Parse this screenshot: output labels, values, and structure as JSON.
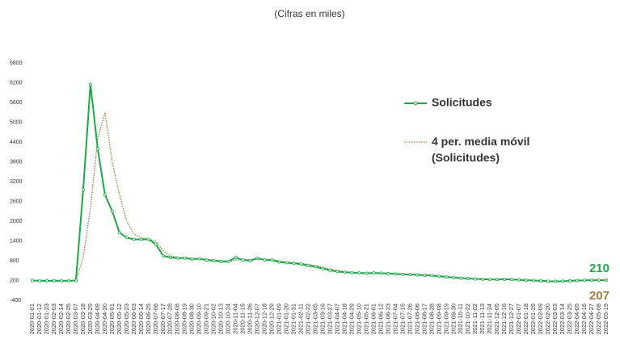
{
  "chart_data": {
    "type": "line",
    "subtitle": "(Cifras en miles)",
    "categories": [
      "2020-01-01",
      "2020-01-12",
      "2020-01-23",
      "2020-02-03",
      "2020-02-14",
      "2020-02-25",
      "2020-03-07",
      "2020-03-18",
      "2020-03-29",
      "2020-04-09",
      "2020-04-20",
      "2020-05-01",
      "2020-05-12",
      "2020-05-23",
      "2020-06-03",
      "2020-06-14",
      "2020-06-25",
      "2020-07-06",
      "2020-07-17",
      "2020-07-28",
      "2020-08-08",
      "2020-08-19",
      "2020-08-30",
      "2020-09-10",
      "2020-09-21",
      "2020-10-02",
      "2020-10-13",
      "2020-10-24",
      "2020-11-04",
      "2020-11-15",
      "2020-11-26",
      "2020-12-07",
      "2020-12-18",
      "2020-12-29",
      "2021-01-09",
      "2021-01-20",
      "2021-01-31",
      "2021-02-11",
      "2021-02-22",
      "2021-03-05",
      "2021-03-16",
      "2021-03-27",
      "2021-04-07",
      "2021-04-18",
      "2021-04-29",
      "2021-05-10",
      "2021-05-21",
      "2021-06-01",
      "2021-06-12",
      "2021-06-23",
      "2021-07-04",
      "2021-07-15",
      "2021-07-26",
      "2021-08-06",
      "2021-08-17",
      "2021-08-28",
      "2021-09-08",
      "2021-09-19",
      "2021-09-30",
      "2021-10-11",
      "2021-10-22",
      "2021-11-02",
      "2021-11-13",
      "2021-11-24",
      "2021-12-05",
      "2021-12-16",
      "2021-12-27",
      "2022-01-07",
      "2022-01-18",
      "2022-01-29",
      "2022-02-09",
      "2022-02-20",
      "2022-03-03",
      "2022-03-14",
      "2022-03-25",
      "2022-04-05",
      "2022-04-16",
      "2022-04-27",
      "2022-05-08",
      "2022-05-19"
    ],
    "series": [
      {
        "name": "Solicitudes",
        "color": "#1ea84a",
        "style": "solid",
        "values": [
          200,
          195,
          190,
          195,
          190,
          190,
          200,
          2950,
          6150,
          4200,
          2800,
          2300,
          1650,
          1500,
          1450,
          1450,
          1450,
          1300,
          950,
          900,
          880,
          880,
          850,
          860,
          820,
          800,
          780,
          780,
          900,
          820,
          800,
          880,
          820,
          820,
          760,
          740,
          720,
          700,
          650,
          620,
          560,
          510,
          470,
          450,
          440,
          430,
          420,
          430,
          420,
          410,
          400,
          390,
          380,
          370,
          360,
          350,
          330,
          310,
          290,
          270,
          260,
          250,
          240,
          230,
          230,
          240,
          230,
          220,
          210,
          200,
          190,
          180,
          175,
          180,
          190,
          200,
          205,
          210,
          210,
          210
        ]
      },
      {
        "name": "4 per. media móvil (Solicitudes)",
        "color": "#9c7a45",
        "style": "dotted",
        "values": [
          200,
          198,
          195,
          194,
          193,
          192,
          195,
          900,
          2400,
          4500,
          5300,
          3800,
          2800,
          2000,
          1600,
          1500,
          1450,
          1400,
          1100,
          950,
          900,
          885,
          870,
          860,
          840,
          820,
          800,
          785,
          820,
          830,
          830,
          840,
          840,
          830,
          800,
          760,
          740,
          720,
          690,
          650,
          600,
          550,
          510,
          470,
          450,
          440,
          430,
          428,
          425,
          420,
          410,
          400,
          390,
          380,
          370,
          360,
          340,
          320,
          300,
          280,
          265,
          255,
          245,
          235,
          232,
          235,
          233,
          225,
          215,
          205,
          195,
          185,
          180,
          180,
          185,
          195,
          200,
          205,
          207,
          207
        ]
      }
    ],
    "ylim": [
      -400,
      6800
    ],
    "yticks": [
      -400,
      200,
      800,
      1400,
      2000,
      2600,
      3200,
      3800,
      4400,
      5000,
      5600,
      6200,
      6800
    ],
    "legend": "upper right"
  }
}
